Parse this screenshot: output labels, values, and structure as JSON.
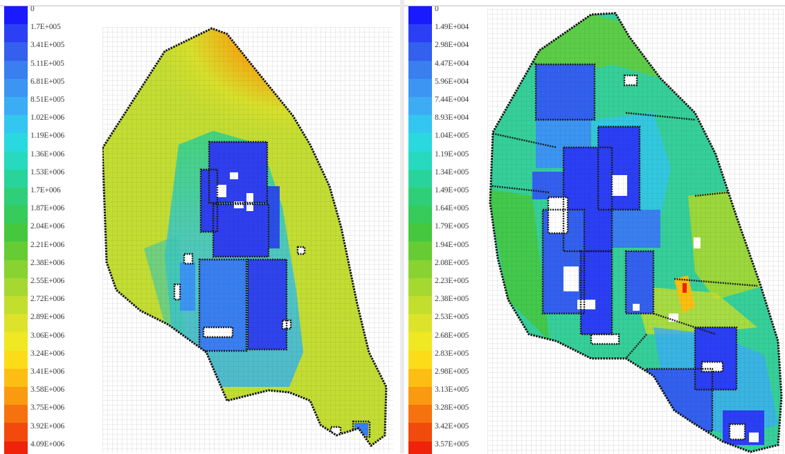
{
  "left_panel": {
    "legend_labels": [
      "0",
      "1.7E+005",
      "3.41E+005",
      "5.11E+005",
      "6.81E+005",
      "8.51E+005",
      "1.02E+006",
      "1.19E+006",
      "1.36E+006",
      "1.53E+006",
      "1.7E+006",
      "1.87E+006",
      "2.04E+006",
      "2.21E+006",
      "2.38E+006",
      "2.55E+006",
      "2.72E+006",
      "2.89E+006",
      "3.06E+006",
      "3.24E+006",
      "3.41E+006",
      "3.58E+006",
      "3.75E+006",
      "3.92E+006",
      "4.09E+006"
    ],
    "legend_colors": [
      "#1a1aff",
      "#2b3ff5",
      "#3360ee",
      "#3a7ff0",
      "#3c95f2",
      "#3cacf4",
      "#33c6f0",
      "#2ad8e0",
      "#26d9bf",
      "#29d49c",
      "#2ecf78",
      "#36cb5a",
      "#45c83e",
      "#66cc33",
      "#88d232",
      "#a6d832",
      "#c4de2e",
      "#dde32a",
      "#f0e822",
      "#fcdc18",
      "#fcbe12",
      "#f99a10",
      "#f6720e",
      "#f24a0c",
      "#ee230a"
    ]
  },
  "right_panel": {
    "legend_labels": [
      "0",
      "1.49E+004",
      "2.98E+004",
      "4.47E+004",
      "5.96E+004",
      "7.44E+004",
      "8.93E+004",
      "1.04E+005",
      "1.19E+005",
      "1.34E+005",
      "1.49E+005",
      "1.64E+005",
      "1.79E+005",
      "1.94E+005",
      "2.08E+005",
      "2.23E+005",
      "2.38E+005",
      "2.53E+005",
      "2.68E+005",
      "2.83E+005",
      "2.98E+005",
      "3.13E+005",
      "3.28E+005",
      "3.42E+005",
      "3.57E+005"
    ],
    "legend_colors": [
      "#1a1aff",
      "#2b3ff5",
      "#3360ee",
      "#3a7ff0",
      "#3c95f2",
      "#3cacf4",
      "#33c6f0",
      "#2ad8e0",
      "#26d9bf",
      "#29d49c",
      "#2ecf78",
      "#36cb5a",
      "#45c83e",
      "#66cc33",
      "#88d232",
      "#a6d832",
      "#c4de2e",
      "#dde32a",
      "#f0e822",
      "#fcdc18",
      "#fcbe12",
      "#f99a10",
      "#f6720e",
      "#f24a0c",
      "#ee230a"
    ]
  }
}
